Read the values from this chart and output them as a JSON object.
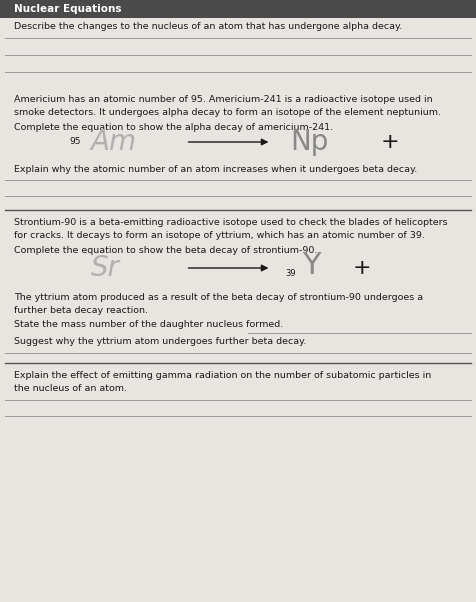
{
  "bg_color": "#e8e5e0",
  "header_bg": "#4a4a4a",
  "header_text_color": "#ffffff",
  "border_color": "#999999",
  "line_color": "#999999",
  "text_color": "#1a1a1a",
  "gray_element": "#b0b0b0",
  "dark_element": "#888888",
  "figsize": [
    4.76,
    6.02
  ],
  "dpi": 100,
  "title": "Nuclear Equations",
  "q1": "Describe the changes to the nucleus of an atom that has undergone alpha decay.",
  "para1_line1": "Americium has an atomic number of 95. Americium-241 is a radioactive isotope used in",
  "para1_line2": "smoke detectors. It undergoes alpha decay to form an isotope of the element neptunium.",
  "complete_alpha": "Complete the equation to show the alpha decay of americium-241.",
  "q2": "Explain why the atomic number of an atom increases when it undergoes beta decay.",
  "para2_line1": "Strontium-90 is a beta-emitting radioactive isotope used to check the blades of helicopters",
  "para2_line2": "for cracks. It decays to form an isotope of yttrium, which has an atomic number of 39.",
  "complete_beta": "Complete the equation to show the beta decay of strontium-90.",
  "para3_line1": "The yttrium atom produced as a result of the beta decay of strontium-90 undergoes a",
  "para3_line2": "further beta decay reaction.",
  "state_mass": "State the mass number of the daughter nucleus formed.",
  "suggest": "Suggest why the yttrium atom undergoes further beta decay.",
  "explain_gamma_line1": "Explain the effect of emitting gamma radiation on the number of subatomic particles in",
  "explain_gamma_line2": "the nucleus of an atom."
}
